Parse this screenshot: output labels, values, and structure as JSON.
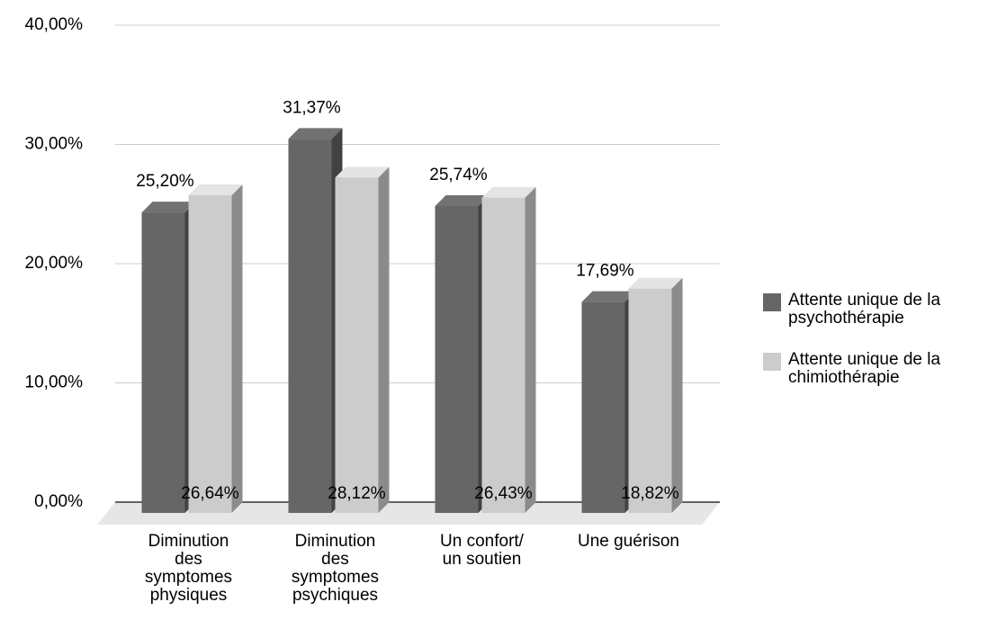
{
  "chart_data": {
    "type": "bar3d",
    "categories": [
      "Diminution des symptomes physiques",
      "Diminution des symptomes psychiques",
      "Un confort/ un soutien",
      "Une guérison"
    ],
    "series": [
      {
        "name": "Attente unique de la psychothérapie",
        "color": "#666666",
        "values": [
          25.2,
          31.37,
          25.74,
          17.69
        ],
        "value_labels": [
          "25,20%",
          "31,37%",
          "25,74%",
          "17,69%"
        ]
      },
      {
        "name": "Attente unique de la chimiothérapie",
        "color": "#cccccc",
        "values": [
          26.64,
          28.12,
          26.43,
          18.82
        ],
        "value_labels": [
          "26,64%",
          "28,12%",
          "26,43%",
          "18,82%"
        ]
      }
    ],
    "ylim": [
      0,
      40
    ],
    "yticks": [
      {
        "value": 0,
        "label": "0,00%"
      },
      {
        "value": 10,
        "label": "10,00%"
      },
      {
        "value": 20,
        "label": "20,00%"
      },
      {
        "value": 30,
        "label": "30,00%"
      },
      {
        "value": 40,
        "label": "40,00%"
      }
    ],
    "grid": true,
    "legend": "right"
  }
}
